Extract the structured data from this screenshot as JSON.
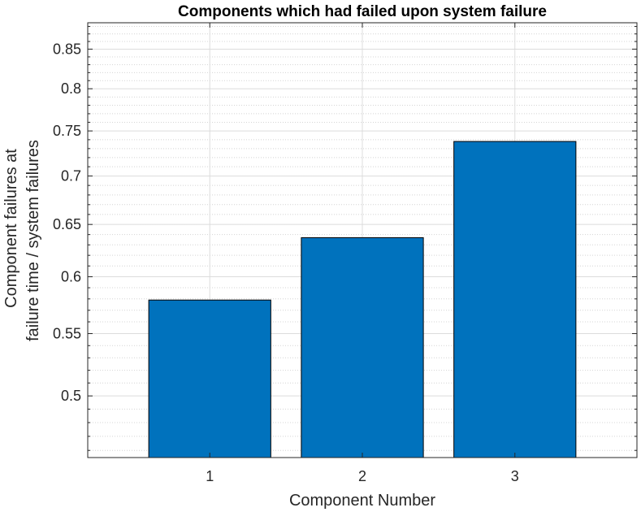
{
  "chart_data": {
    "type": "bar",
    "title": "Components which had failed upon system failure",
    "xlabel": "Component Number",
    "ylabel_lines": [
      "Component failures at",
      "failure time / system failures"
    ],
    "categories": [
      "1",
      "2",
      "3"
    ],
    "values": [
      0.579,
      0.637,
      0.738
    ],
    "xlim": [
      0.2,
      3.8
    ],
    "ylim": [
      0.455,
      0.885
    ],
    "yscale": "log",
    "yticks": [
      0.5,
      0.55,
      0.6,
      0.65,
      0.7,
      0.75,
      0.8,
      0.85
    ],
    "ytick_labels": [
      "0.5",
      "0.55",
      "0.6",
      "0.65",
      "0.7",
      "0.75",
      "0.8",
      "0.85"
    ],
    "minor_yticks": [
      0.46,
      0.47,
      0.48,
      0.49,
      0.51,
      0.52,
      0.53,
      0.54,
      0.56,
      0.57,
      0.58,
      0.59,
      0.61,
      0.62,
      0.63,
      0.64,
      0.66,
      0.67,
      0.68,
      0.69,
      0.71,
      0.72,
      0.73,
      0.74,
      0.76,
      0.77,
      0.78,
      0.79,
      0.81,
      0.82,
      0.83,
      0.84,
      0.86,
      0.87,
      0.88
    ],
    "grid": true,
    "bar_color": "#0072BD",
    "bar_edge_color": "#000000"
  }
}
